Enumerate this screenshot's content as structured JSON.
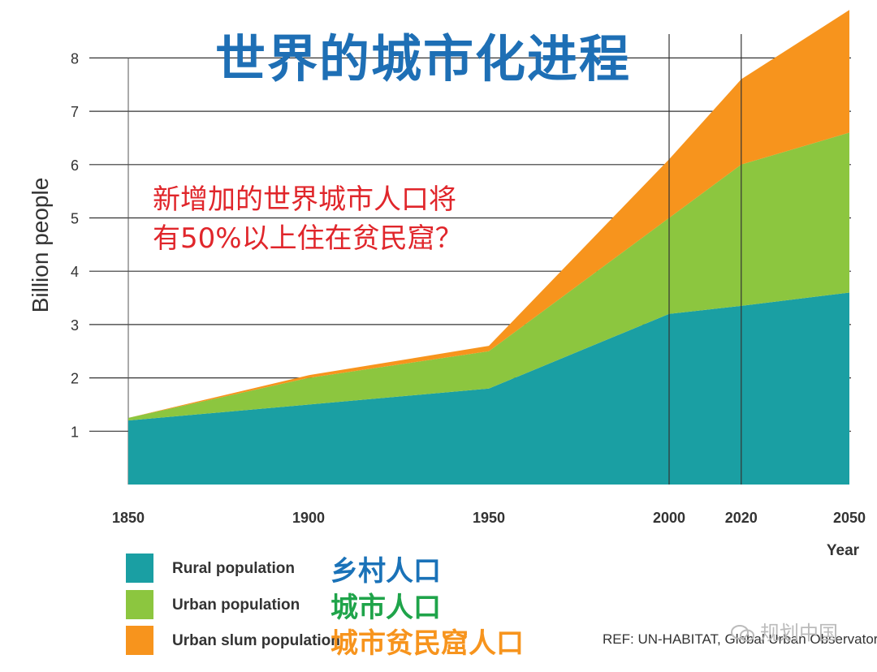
{
  "chart_data": {
    "type": "area",
    "title": "世界的城市化进程",
    "ylabel": "Billion people",
    "xlabel": "Year",
    "x": [
      1850,
      1900,
      1950,
      2000,
      2020,
      2050
    ],
    "x_ticks": [
      "1850",
      "1900",
      "1950",
      "2000",
      "2020",
      "2050"
    ],
    "y_ticks": [
      "1",
      "2",
      "3",
      "4",
      "5",
      "6",
      "7",
      "8"
    ],
    "ylim": [
      0,
      8.9
    ],
    "stacked": true,
    "series": [
      {
        "name": "Rural population",
        "label_cn": "乡村人口",
        "color": "#1a9fa3",
        "label_color": "#1a72b8",
        "values": [
          1.2,
          1.5,
          1.8,
          3.2,
          3.35,
          3.6
        ]
      },
      {
        "name": "Urban population",
        "label_cn": "城市人口",
        "color": "#8cc63f",
        "label_color": "#1fa44a",
        "values": [
          0.05,
          0.5,
          0.7,
          1.8,
          2.65,
          3.0
        ]
      },
      {
        "name": "Urban slum population",
        "label_cn": "城市贫民窟人口",
        "color": "#f7941d",
        "label_color": "#f7941d",
        "values": [
          0.0,
          0.05,
          0.1,
          1.1,
          1.6,
          2.3
        ]
      }
    ],
    "vertical_lines_at": [
      2000,
      2020
    ],
    "grid": true,
    "legend_position": "bottom-left"
  },
  "annotation": {
    "line1": "新增加的世界城市人口将",
    "line2": "有50%以上住在贫民窟？"
  },
  "reference": "REF: UN-HABITAT, Global Urban Observatory",
  "watermark": "规划中国"
}
